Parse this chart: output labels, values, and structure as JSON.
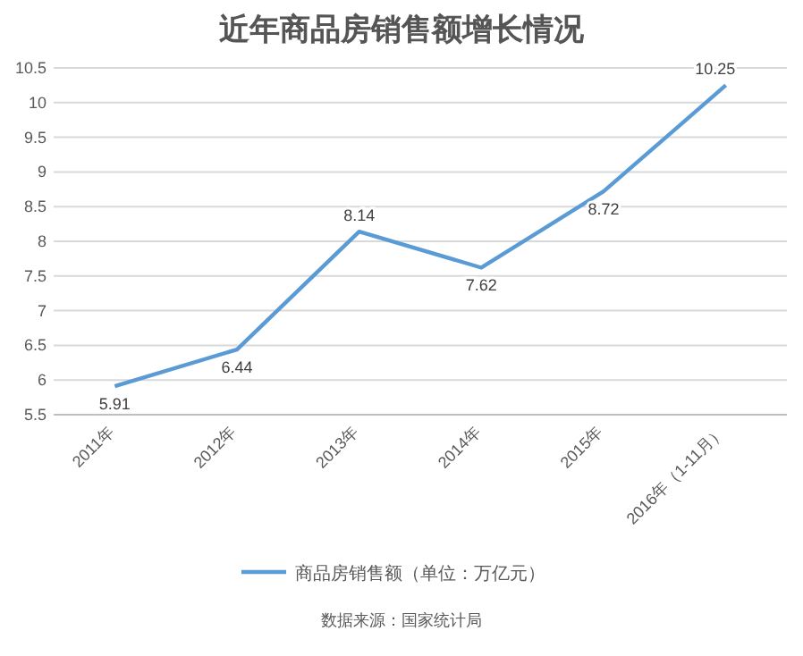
{
  "chart_data": {
    "type": "line",
    "title": "近年商品房销售额增长情况",
    "categories": [
      "2011年",
      "2012年",
      "2013年",
      "2014年",
      "2015年",
      "2016年（1-11月）"
    ],
    "series": [
      {
        "name": "商品房销售额（单位：万亿元）",
        "color": "#5b9bd5",
        "values": [
          5.91,
          6.44,
          8.14,
          7.62,
          8.72,
          10.25
        ]
      }
    ],
    "ylim": [
      5.5,
      10.5
    ],
    "yticks": [
      5.5,
      6,
      6.5,
      7,
      7.5,
      8,
      8.5,
      9,
      9.5,
      10,
      10.5
    ],
    "grid": "y",
    "legend": "bottom",
    "data_labels": true,
    "marker": "none",
    "line_style": "solid",
    "annotations": [
      "数据来源：国家统计局"
    ]
  }
}
